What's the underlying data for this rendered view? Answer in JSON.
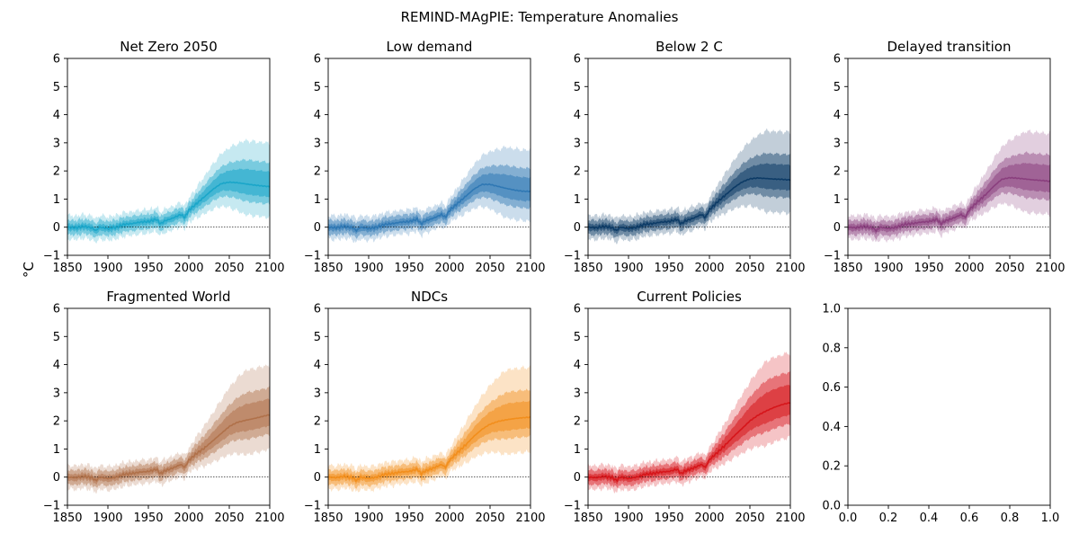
{
  "figure": {
    "suptitle": "REMIND-MAgPIE: Temperature Anomalies",
    "shared_ylabel": "°C"
  },
  "chart_data": [
    {
      "type": "line",
      "title": "Net Zero 2050",
      "color": "#1aa6c9",
      "xlim": [
        1850,
        2100
      ],
      "ylim": [
        -1,
        6
      ],
      "xticks": [
        1850,
        1900,
        1950,
        2000,
        2050,
        2100
      ],
      "yticks": [
        -1,
        0,
        1,
        2,
        3,
        4,
        5,
        6
      ],
      "reference_line_y": 0,
      "x": [
        1850,
        1860,
        1870,
        1880,
        1885,
        1890,
        1900,
        1910,
        1920,
        1930,
        1940,
        1950,
        1960,
        1965,
        1970,
        1980,
        1990,
        1995,
        2000,
        2010,
        2020,
        2030,
        2040,
        2050,
        2060,
        2070,
        2080,
        2090,
        2100
      ],
      "median": [
        0.0,
        -0.02,
        0.03,
        -0.02,
        -0.12,
        0.0,
        -0.05,
        0.0,
        0.1,
        0.13,
        0.18,
        0.2,
        0.28,
        0.12,
        0.22,
        0.32,
        0.45,
        0.35,
        0.6,
        0.85,
        1.1,
        1.35,
        1.55,
        1.6,
        1.58,
        1.54,
        1.5,
        1.47,
        1.44
      ],
      "band_halfwidths": [
        0.12,
        0.26,
        0.42
      ],
      "band_growth": [
        0.55,
        0.8,
        1.5
      ]
    },
    {
      "type": "line",
      "title": "Low demand",
      "color": "#2f78b4",
      "xlim": [
        1850,
        2100
      ],
      "ylim": [
        -1,
        6
      ],
      "xticks": [
        1850,
        1900,
        1950,
        2000,
        2050,
        2100
      ],
      "yticks": [
        -1,
        0,
        1,
        2,
        3,
        4,
        5,
        6
      ],
      "reference_line_y": 0,
      "x": [
        1850,
        1860,
        1870,
        1880,
        1885,
        1890,
        1900,
        1910,
        1920,
        1930,
        1940,
        1950,
        1960,
        1965,
        1970,
        1980,
        1990,
        1995,
        2000,
        2010,
        2020,
        2030,
        2040,
        2050,
        2060,
        2070,
        2080,
        2090,
        2100
      ],
      "median": [
        0.0,
        -0.02,
        0.03,
        -0.02,
        -0.12,
        0.0,
        -0.05,
        0.0,
        0.1,
        0.13,
        0.18,
        0.2,
        0.28,
        0.12,
        0.22,
        0.32,
        0.45,
        0.35,
        0.6,
        0.85,
        1.1,
        1.35,
        1.52,
        1.52,
        1.45,
        1.38,
        1.32,
        1.28,
        1.27
      ],
      "band_halfwidths": [
        0.12,
        0.26,
        0.42
      ],
      "band_growth": [
        0.5,
        0.75,
        1.4
      ]
    },
    {
      "type": "line",
      "title": "Below 2 C",
      "color": "#0d3b66",
      "xlim": [
        1850,
        2100
      ],
      "ylim": [
        -1,
        6
      ],
      "xticks": [
        1850,
        1900,
        1950,
        2000,
        2050,
        2100
      ],
      "yticks": [
        -1,
        0,
        1,
        2,
        3,
        4,
        5,
        6
      ],
      "reference_line_y": 0,
      "x": [
        1850,
        1860,
        1870,
        1880,
        1885,
        1890,
        1900,
        1910,
        1920,
        1930,
        1940,
        1950,
        1960,
        1965,
        1970,
        1980,
        1990,
        1995,
        2000,
        2010,
        2020,
        2030,
        2040,
        2050,
        2060,
        2070,
        2080,
        2090,
        2100
      ],
      "median": [
        0.0,
        -0.02,
        0.03,
        -0.02,
        -0.12,
        0.0,
        -0.05,
        0.0,
        0.1,
        0.13,
        0.18,
        0.2,
        0.28,
        0.12,
        0.22,
        0.32,
        0.45,
        0.35,
        0.62,
        0.9,
        1.15,
        1.4,
        1.6,
        1.72,
        1.75,
        1.73,
        1.71,
        1.7,
        1.68
      ],
      "band_halfwidths": [
        0.12,
        0.26,
        0.42
      ],
      "band_growth": [
        0.55,
        0.85,
        1.7
      ]
    },
    {
      "type": "line",
      "title": "Delayed transition",
      "color": "#8a3f7e",
      "xlim": [
        1850,
        2100
      ],
      "ylim": [
        -1,
        6
      ],
      "xticks": [
        1850,
        1900,
        1950,
        2000,
        2050,
        2100
      ],
      "yticks": [
        -1,
        0,
        1,
        2,
        3,
        4,
        5,
        6
      ],
      "reference_line_y": 0,
      "x": [
        1850,
        1860,
        1870,
        1880,
        1885,
        1890,
        1900,
        1910,
        1920,
        1930,
        1940,
        1950,
        1960,
        1965,
        1970,
        1980,
        1990,
        1995,
        2000,
        2010,
        2020,
        2030,
        2040,
        2050,
        2060,
        2070,
        2080,
        2090,
        2100
      ],
      "median": [
        0.0,
        -0.02,
        0.03,
        -0.02,
        -0.12,
        0.0,
        -0.05,
        0.0,
        0.1,
        0.13,
        0.18,
        0.2,
        0.28,
        0.12,
        0.22,
        0.32,
        0.45,
        0.35,
        0.62,
        0.9,
        1.15,
        1.45,
        1.7,
        1.76,
        1.74,
        1.71,
        1.68,
        1.66,
        1.63
      ],
      "band_halfwidths": [
        0.12,
        0.26,
        0.42
      ],
      "band_growth": [
        0.6,
        0.9,
        1.7
      ]
    },
    {
      "type": "line",
      "title": "Fragmented World",
      "color": "#b0714a",
      "xlim": [
        1850,
        2100
      ],
      "ylim": [
        -1,
        6
      ],
      "xticks": [
        1850,
        1900,
        1950,
        2000,
        2050,
        2100
      ],
      "yticks": [
        -1,
        0,
        1,
        2,
        3,
        4,
        5,
        6
      ],
      "reference_line_y": 0,
      "x": [
        1850,
        1860,
        1870,
        1880,
        1885,
        1890,
        1900,
        1910,
        1920,
        1930,
        1940,
        1950,
        1960,
        1965,
        1970,
        1980,
        1990,
        1995,
        2000,
        2010,
        2020,
        2030,
        2040,
        2050,
        2060,
        2070,
        2080,
        2090,
        2100
      ],
      "median": [
        0.0,
        -0.02,
        0.03,
        -0.02,
        -0.12,
        0.0,
        -0.05,
        0.0,
        0.1,
        0.13,
        0.18,
        0.2,
        0.28,
        0.12,
        0.22,
        0.32,
        0.45,
        0.35,
        0.6,
        0.85,
        1.05,
        1.3,
        1.55,
        1.8,
        1.95,
        2.02,
        2.08,
        2.15,
        2.22
      ],
      "band_halfwidths": [
        0.12,
        0.26,
        0.42
      ],
      "band_growth": [
        0.6,
        0.95,
        1.8
      ]
    },
    {
      "type": "line",
      "title": "NDCs",
      "color": "#f28e1c",
      "xlim": [
        1850,
        2100
      ],
      "ylim": [
        -1,
        6
      ],
      "xticks": [
        1850,
        1900,
        1950,
        2000,
        2050,
        2100
      ],
      "yticks": [
        -1,
        0,
        1,
        2,
        3,
        4,
        5,
        6
      ],
      "reference_line_y": 0,
      "x": [
        1850,
        1860,
        1870,
        1880,
        1885,
        1890,
        1900,
        1910,
        1920,
        1930,
        1940,
        1950,
        1960,
        1965,
        1970,
        1980,
        1990,
        1995,
        2000,
        2010,
        2020,
        2030,
        2040,
        2050,
        2060,
        2070,
        2080,
        2090,
        2100
      ],
      "median": [
        0.0,
        -0.02,
        0.03,
        -0.02,
        -0.12,
        0.0,
        -0.05,
        0.0,
        0.1,
        0.13,
        0.18,
        0.2,
        0.28,
        0.12,
        0.22,
        0.32,
        0.45,
        0.35,
        0.6,
        0.88,
        1.15,
        1.45,
        1.7,
        1.88,
        1.98,
        2.04,
        2.08,
        2.11,
        2.13
      ],
      "band_halfwidths": [
        0.12,
        0.26,
        0.42
      ],
      "band_growth": [
        0.6,
        0.95,
        1.8
      ]
    },
    {
      "type": "line",
      "title": "Current Policies",
      "color": "#d6151a",
      "xlim": [
        1850,
        2100
      ],
      "ylim": [
        -1,
        6
      ],
      "xticks": [
        1850,
        1900,
        1950,
        2000,
        2050,
        2100
      ],
      "yticks": [
        -1,
        0,
        1,
        2,
        3,
        4,
        5,
        6
      ],
      "reference_line_y": 0,
      "x": [
        1850,
        1860,
        1870,
        1880,
        1885,
        1890,
        1900,
        1910,
        1920,
        1930,
        1940,
        1950,
        1960,
        1965,
        1970,
        1980,
        1990,
        1995,
        2000,
        2010,
        2020,
        2030,
        2040,
        2050,
        2060,
        2070,
        2080,
        2090,
        2100
      ],
      "median": [
        0.0,
        -0.02,
        0.03,
        -0.02,
        -0.12,
        0.0,
        -0.05,
        0.0,
        0.1,
        0.13,
        0.18,
        0.2,
        0.28,
        0.12,
        0.22,
        0.32,
        0.45,
        0.35,
        0.62,
        0.88,
        1.15,
        1.45,
        1.72,
        2.0,
        2.2,
        2.35,
        2.48,
        2.58,
        2.65
      ],
      "band_halfwidths": [
        0.12,
        0.26,
        0.42
      ],
      "band_growth": [
        0.7,
        1.1,
        1.8
      ]
    },
    {
      "type": "empty",
      "title": "",
      "xlim": [
        0,
        1
      ],
      "ylim": [
        0,
        1
      ],
      "xticks": [
        "0.0",
        "0.2",
        "0.4",
        "0.6",
        "0.8",
        "1.0"
      ],
      "yticks": [
        "0.0",
        "0.2",
        "0.4",
        "0.6",
        "0.8",
        "1.0"
      ]
    }
  ]
}
